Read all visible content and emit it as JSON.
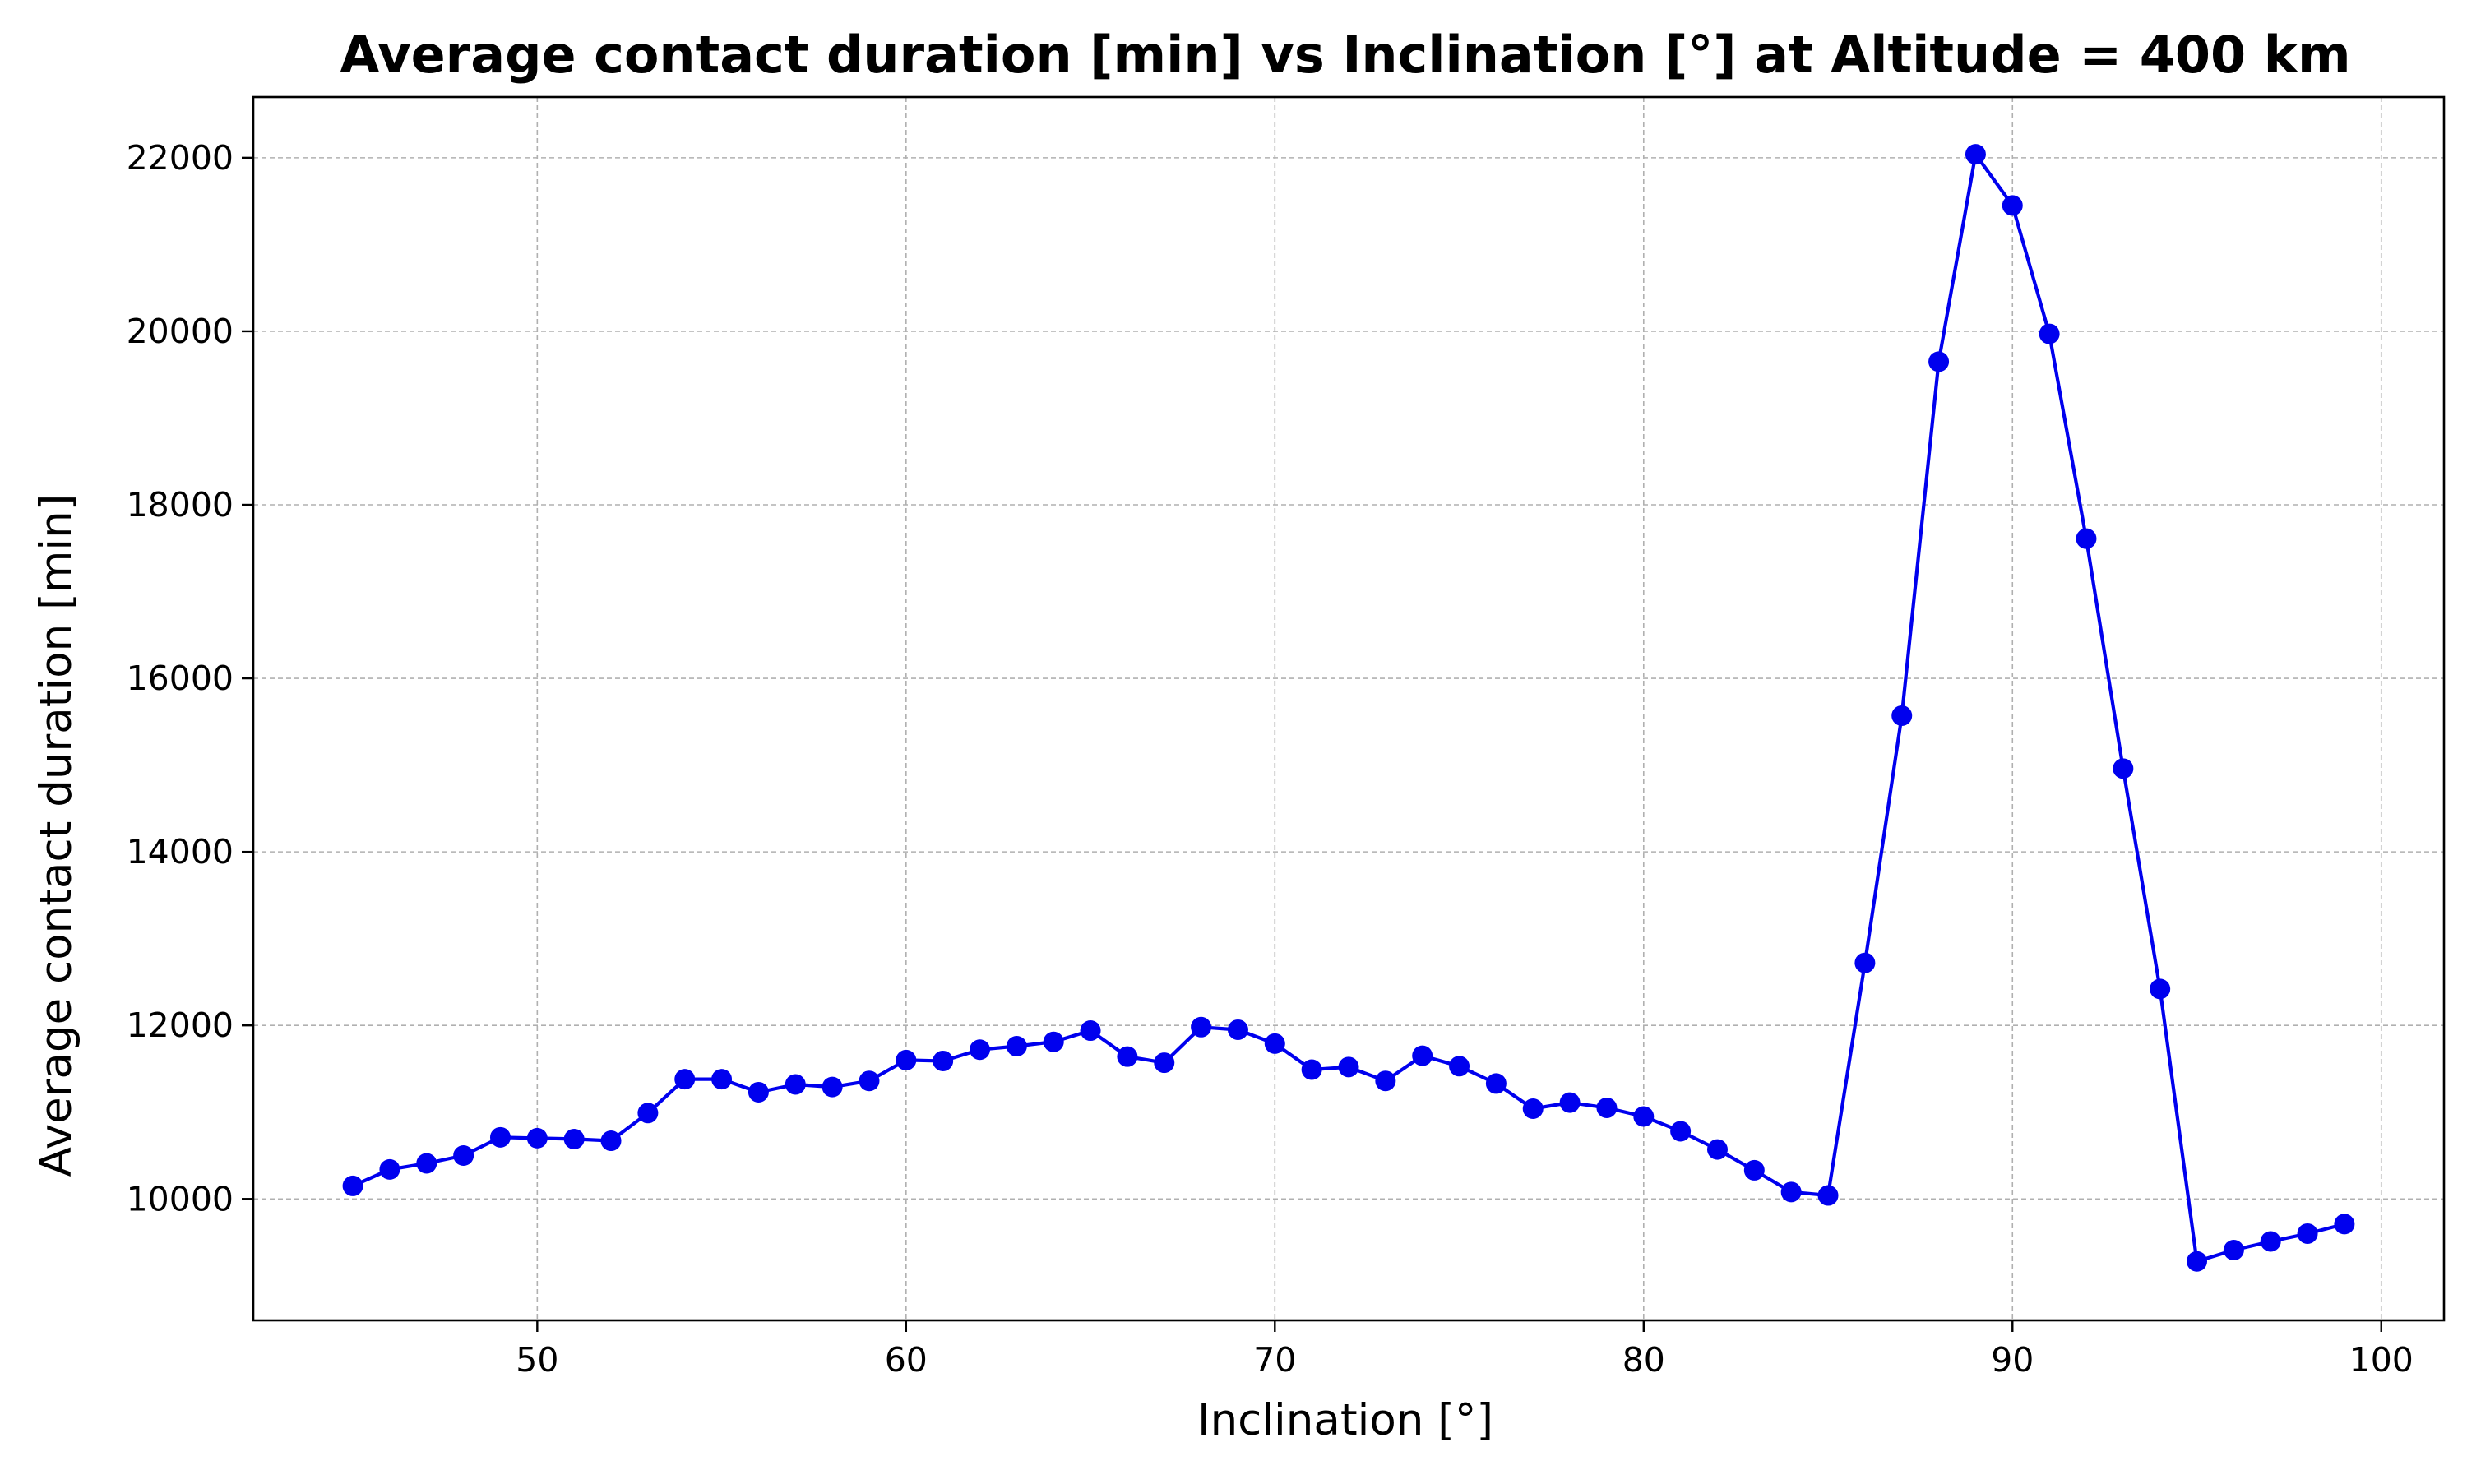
{
  "chart_data": {
    "type": "line",
    "title": "Average contact duration [min] vs Inclination [°] at Altitude = 400 km",
    "xlabel": "Inclination [°]",
    "ylabel": "Average contact duration [min]",
    "xlim": [
      42.3,
      101.7
    ],
    "ylim": [
      8600,
      22700
    ],
    "xticks": [
      50,
      60,
      70,
      80,
      90,
      100
    ],
    "yticks": [
      10000,
      12000,
      14000,
      16000,
      18000,
      20000,
      22000
    ],
    "grid": true,
    "line_color": "#0000ee",
    "marker": "circle",
    "series": [
      {
        "x": [
          45,
          46,
          47,
          48,
          49,
          50,
          51,
          52,
          53,
          54,
          55,
          56,
          57,
          58,
          59,
          60,
          61,
          62,
          63,
          64,
          65,
          66,
          67,
          68,
          69,
          70,
          71,
          72,
          73,
          74,
          75,
          76,
          77,
          78,
          79,
          80,
          81,
          82,
          83,
          84,
          85,
          86,
          87,
          88,
          89,
          90,
          91,
          92,
          93,
          94,
          95,
          96,
          97,
          98,
          99
        ],
        "values": [
          10150,
          10340,
          10410,
          10500,
          10710,
          10700,
          10690,
          10670,
          10990,
          11380,
          11380,
          11230,
          11320,
          11290,
          11360,
          11600,
          11590,
          11720,
          11760,
          11810,
          11940,
          11640,
          11570,
          11980,
          11950,
          11790,
          11490,
          11520,
          11360,
          11650,
          11530,
          11330,
          11040,
          11110,
          11050,
          10950,
          10780,
          10570,
          10330,
          10080,
          10040,
          12720,
          15570,
          19650,
          22040,
          21450,
          19970,
          17610,
          14960,
          12420,
          9280,
          9410,
          9510,
          9600,
          9710
        ]
      }
    ]
  }
}
